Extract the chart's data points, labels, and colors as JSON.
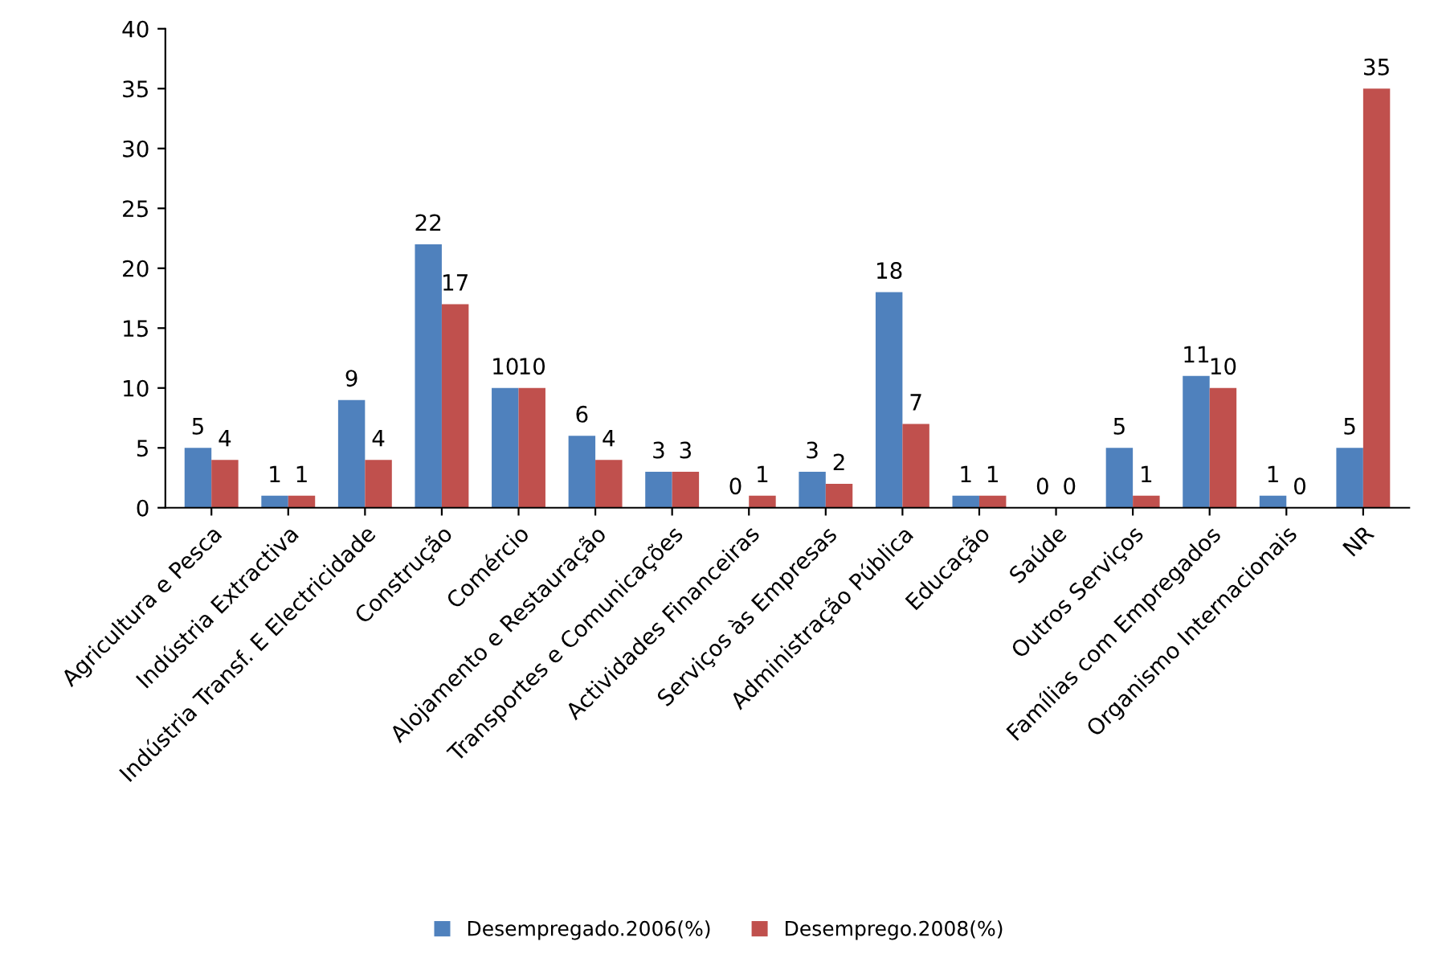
{
  "chart_data": {
    "type": "bar",
    "categories": [
      "Agricultura e Pesca",
      "Indústria Extractiva",
      "Indústria Transf. E Electricidade",
      "Construção",
      "Comércio",
      "Alojamento e Restauração",
      "Transportes e Comunicações",
      "Actividades Financeiras",
      "Serviços às Empresas",
      "Administração Pública",
      "Educação",
      "Saúde",
      "Outros Serviços",
      "Famílias com Empregados",
      "Organismo Internacionais",
      "NR"
    ],
    "series": [
      {
        "name": "Desempregado.2006(%)",
        "color": "#4f81bd",
        "values": [
          5,
          1,
          9,
          22,
          10,
          6,
          3,
          0,
          3,
          18,
          1,
          0,
          5,
          11,
          1,
          5
        ]
      },
      {
        "name": "Desemprego.2008(%)",
        "color": "#c0504d",
        "values": [
          4,
          1,
          4,
          17,
          10,
          4,
          3,
          1,
          2,
          7,
          1,
          0,
          1,
          10,
          0,
          35
        ]
      }
    ],
    "ylim": [
      0,
      40
    ],
    "yticks": [
      0,
      5,
      10,
      15,
      20,
      25,
      30,
      35,
      40
    ],
    "data_labels": true,
    "grid": false,
    "legend": "bottom"
  }
}
